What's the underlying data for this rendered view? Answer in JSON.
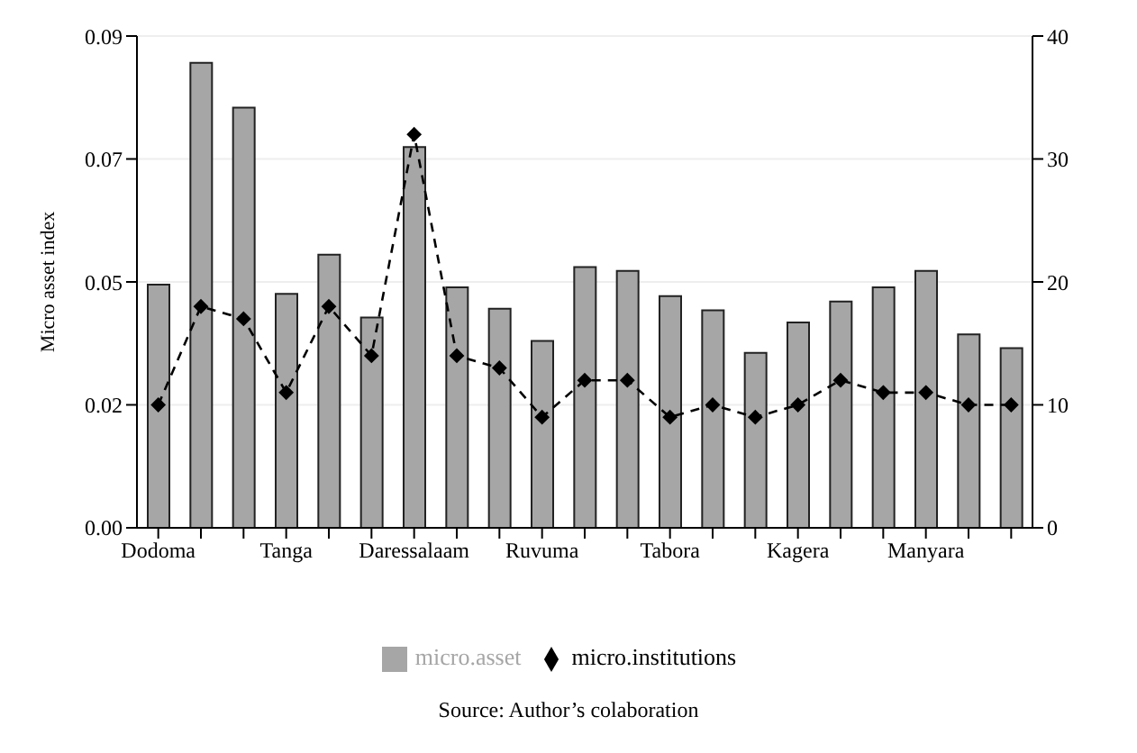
{
  "chart_data": {
    "type": "bar",
    "ylabel": "Micro asset index",
    "categories": [
      "Dodoma",
      null,
      null,
      "Tanga",
      null,
      null,
      "Daressalaam",
      null,
      null,
      "Ruvuma",
      null,
      null,
      "Tabora",
      null,
      null,
      "Kagera",
      null,
      null,
      "Manyara",
      null,
      null
    ],
    "series": [
      {
        "name": "micro.asset",
        "color": "#a6a6a6",
        "values": [
          0.0445,
          0.0851,
          0.0769,
          0.0428,
          0.05,
          0.0385,
          0.0697,
          0.044,
          0.0401,
          0.0342,
          0.0477,
          0.047,
          0.0424,
          0.0398,
          0.032,
          0.0376,
          0.0414,
          0.044,
          0.047,
          0.0354,
          0.0329
        ]
      },
      {
        "name": "micro.institutions",
        "type": "line",
        "axis": "y2",
        "color": "#000000",
        "marker": "diamond",
        "line_style": "dashed",
        "values": [
          10,
          18,
          17,
          11,
          18,
          14,
          32,
          14,
          13,
          9,
          12,
          12,
          9,
          10,
          9,
          10,
          12,
          11,
          11,
          10,
          10
        ]
      }
    ],
    "ylim": [
      0,
      0.09
    ],
    "yticks": [
      {
        "value": 0,
        "label": "0.00"
      },
      {
        "value": 0.0225,
        "label": "0.02"
      },
      {
        "value": 0.045,
        "label": "0.05"
      },
      {
        "value": 0.0675,
        "label": "0.07"
      },
      {
        "value": 0.09,
        "label": "0.09"
      }
    ],
    "y2lim": [
      0,
      40
    ],
    "y2ticks": [
      0,
      10,
      20,
      30,
      40
    ],
    "grid": "y",
    "legend": "bottom",
    "annotations": [
      "Source: Author’s colaboration"
    ]
  }
}
